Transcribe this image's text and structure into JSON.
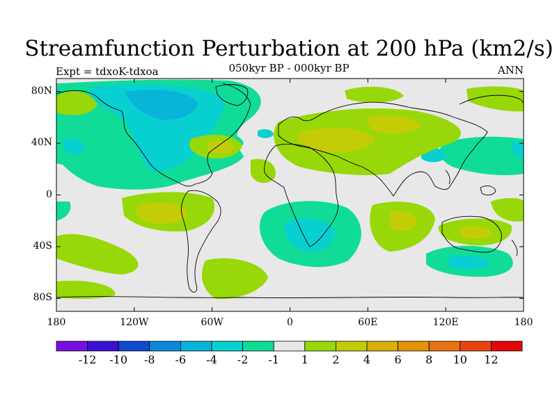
{
  "header": {
    "title": "Streamfunction Perturbation at 200 hPa (km2/s)",
    "subtitle": "050kyr BP - 000kyr BP",
    "left_label": "Expt = tdxoK-tdxoa",
    "right_label": "ANN"
  },
  "axes": {
    "lat_labels": [
      {
        "text": "80N",
        "value": 80
      },
      {
        "text": "40N",
        "value": 40
      },
      {
        "text": "0",
        "value": 0
      },
      {
        "text": "40S",
        "value": -40
      },
      {
        "text": "80S",
        "value": -80
      }
    ],
    "lon_labels": [
      {
        "text": "180",
        "value": -180
      },
      {
        "text": "120W",
        "value": -120
      },
      {
        "text": "60W",
        "value": -60
      },
      {
        "text": "0",
        "value": 0
      },
      {
        "text": "60E",
        "value": 60
      },
      {
        "text": "120E",
        "value": 120
      },
      {
        "text": "180",
        "value": 180
      }
    ],
    "lat_range": [
      -90,
      90
    ],
    "lon_range": [
      -180,
      180
    ]
  },
  "colorbar": {
    "colors": [
      "#7a0ee0",
      "#3a10d6",
      "#1048d0",
      "#0a88d8",
      "#08b4d8",
      "#08d0d0",
      "#10dc98",
      "#e8e8e8",
      "#98d808",
      "#c4cc08",
      "#d8b008",
      "#e09408",
      "#e87010",
      "#e84410",
      "#e00808"
    ],
    "labels": [
      "-12",
      "-10",
      "-8",
      "-6",
      "-4",
      "-2",
      "-1",
      "1",
      "2",
      "4",
      "6",
      "8",
      "10",
      "12"
    ]
  }
}
